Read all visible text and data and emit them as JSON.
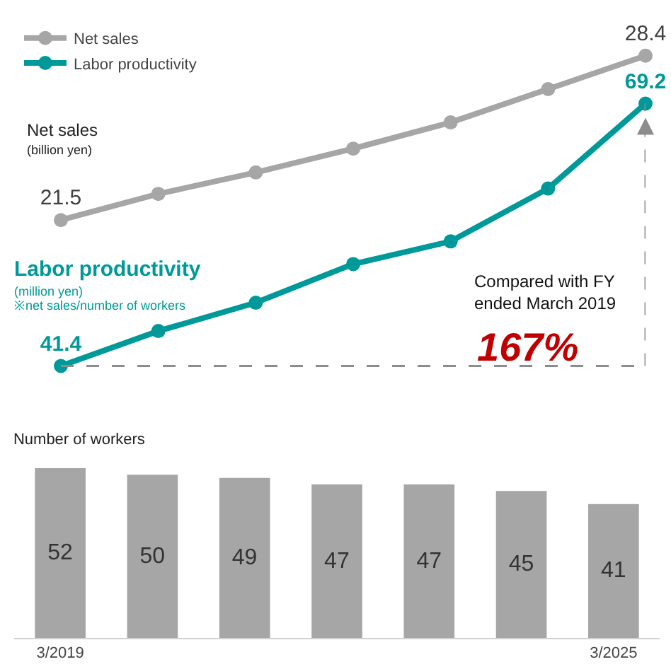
{
  "chart_data": [
    {
      "type": "line",
      "categories": [
        null,
        null,
        null,
        null,
        null,
        null,
        null
      ],
      "series": [
        {
          "name": "Net sales",
          "color": "#a6a6a6",
          "values": [
            21.5,
            22.6,
            23.5,
            24.5,
            25.6,
            27.0,
            28.4
          ],
          "value_labels": [
            "21.5",
            null,
            null,
            null,
            null,
            null,
            "28.4"
          ]
        }
      ],
      "tick_labels": false,
      "marker": "circle",
      "line_style": "solid",
      "legend": "top left",
      "annotations": [
        "Net sales",
        "(billion yen)"
      ]
    },
    {
      "type": "line",
      "categories": [
        null,
        null,
        null,
        null,
        null,
        null,
        null
      ],
      "series": [
        {
          "name": "Labor productivity",
          "color": "#009999",
          "values": [
            41.4,
            45.1,
            48.1,
            52.2,
            54.6,
            60.2,
            69.2
          ],
          "value_labels": [
            "41.4",
            null,
            null,
            null,
            null,
            null,
            "69.2"
          ]
        }
      ],
      "tick_labels": false,
      "marker": "circle",
      "line_style": "solid",
      "legend": "top left",
      "annotations": [
        "Labor productivity",
        "(million yen)",
        "※net sales/number of workers",
        "Compared with FY\nended March 2019",
        "167%"
      ]
    },
    {
      "type": "bar",
      "title": "Number of workers",
      "categories": [
        "3/2019",
        null,
        null,
        null,
        null,
        null,
        "3/2025"
      ],
      "values": [
        52,
        50,
        49,
        47,
        47,
        45,
        41
      ],
      "color": "#a6a6a6",
      "data_labels": true,
      "ylim": [
        0,
        52
      ],
      "tick_labels": "x"
    }
  ]
}
